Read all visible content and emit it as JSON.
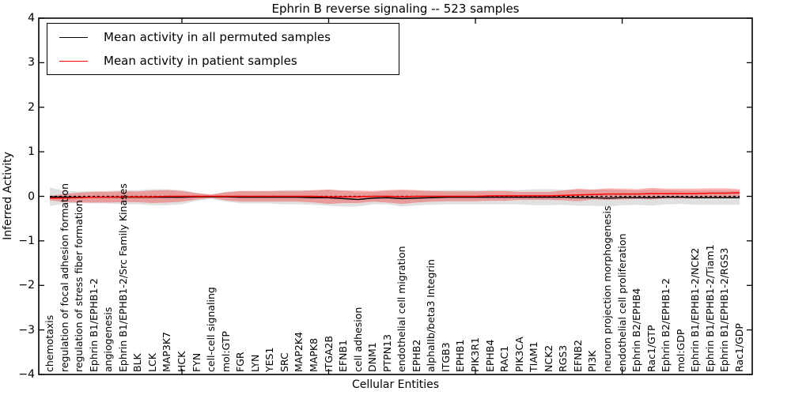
{
  "title": "Ephrin B reverse signaling -- 523 samples",
  "axes": {
    "xlabel": "Cellular Entities",
    "ylabel": "Inferred Activity"
  },
  "legend": {
    "items": [
      {
        "label": "Mean activity in all permuted samples",
        "color": "#000000"
      },
      {
        "label": "Mean activity in patient samples",
        "color": "#ff0000"
      }
    ]
  },
  "chart_data": {
    "type": "line",
    "title": "Ephrin B reverse signaling -- 523 samples",
    "xlabel": "Cellular Entities",
    "ylabel": "Inferred Activity",
    "ylim": [
      -4,
      4
    ],
    "y_ticks": [
      4,
      3,
      2,
      1,
      0,
      -1,
      -2,
      -3,
      -4
    ],
    "grid": false,
    "legend_position": "upper left",
    "zero_line_dashed": true,
    "x_major_tick_indices": [
      9,
      19,
      29,
      39
    ],
    "categories": [
      "chemotaxis",
      "regulation of focal adhesion formation",
      "regulation of stress fiber formation",
      "Ephrin B1/EPHB1-2",
      "angiogenesis",
      "Ephrin B1/EPHB1-2/Src Family Kinases",
      "BLK",
      "LCK",
      "MAP3K7",
      "HCK",
      "FYN",
      "cell-cell signaling",
      "mol:GTP",
      "FGR",
      "LYN",
      "YES1",
      "SRC",
      "MAP2K4",
      "MAPK8",
      "ITGA2B",
      "EFNB1",
      "cell adhesion",
      "DNM1",
      "PTPN13",
      "endothelial cell migration",
      "EPHB2",
      "alphaIIb/beta3 Integrin",
      "ITGB3",
      "EPHB1",
      "PIK3R1",
      "EPHB4",
      "RAC1",
      "PIK3CA",
      "TIAM1",
      "NCK2",
      "RGS3",
      "EFNB2",
      "PI3K",
      "neuron projection morphogenesis",
      "endothelial cell proliferation",
      "Ephrin B2/EPHB4",
      "Rac1/GTP",
      "Ephrin B2/EPHB1-2",
      "mol:GDP",
      "Ephrin B1/EPHB1-2/NCK2",
      "Ephrin B1/EPHB1-2/Tiam1",
      "Ephrin B1/EPHB1-2/RGS3",
      "Rac1/GDP"
    ],
    "series": [
      {
        "name": "Mean activity in all permuted samples",
        "color": "#000000",
        "band_color": "rgba(0,0,0,0.12)",
        "mean": [
          -0.01,
          -0.02,
          -0.02,
          -0.02,
          -0.02,
          -0.02,
          -0.02,
          -0.02,
          -0.02,
          -0.02,
          -0.01,
          -0.01,
          -0.01,
          -0.02,
          -0.02,
          -0.02,
          -0.02,
          -0.02,
          -0.03,
          -0.03,
          -0.05,
          -0.07,
          -0.04,
          -0.03,
          -0.05,
          -0.04,
          -0.03,
          -0.02,
          -0.02,
          -0.02,
          -0.02,
          -0.02,
          -0.02,
          -0.02,
          -0.02,
          -0.02,
          -0.03,
          -0.03,
          -0.04,
          -0.03,
          -0.03,
          -0.03,
          -0.02,
          -0.02,
          -0.03,
          -0.03,
          -0.03,
          -0.03
        ],
        "std": [
          0.21,
          0.14,
          0.13,
          0.14,
          0.14,
          0.16,
          0.16,
          0.18,
          0.18,
          0.16,
          0.09,
          0.05,
          0.11,
          0.14,
          0.14,
          0.14,
          0.16,
          0.16,
          0.16,
          0.18,
          0.18,
          0.16,
          0.14,
          0.15,
          0.18,
          0.16,
          0.16,
          0.16,
          0.16,
          0.16,
          0.16,
          0.16,
          0.16,
          0.18,
          0.18,
          0.17,
          0.18,
          0.18,
          0.19,
          0.17,
          0.16,
          0.18,
          0.16,
          0.15,
          0.16,
          0.16,
          0.16,
          0.16
        ]
      },
      {
        "name": "Mean activity in patient samples",
        "color": "#ff0000",
        "band_color": "rgba(255,0,0,0.30)",
        "mean": [
          -0.04,
          -0.04,
          -0.03,
          -0.02,
          -0.02,
          -0.01,
          -0.01,
          -0.01,
          0,
          0,
          0,
          0,
          0,
          0,
          0,
          0,
          0,
          0,
          0,
          -0.01,
          -0.01,
          -0.01,
          0,
          0,
          -0.01,
          0,
          0,
          0,
          0,
          0,
          0.01,
          0.01,
          0.01,
          0.01,
          0.01,
          0.02,
          0.03,
          0.04,
          0.05,
          0.05,
          0.05,
          0.06,
          0.06,
          0.06,
          0.06,
          0.07,
          0.07,
          0.08
        ],
        "std": [
          0.05,
          0.09,
          0.11,
          0.12,
          0.12,
          0.12,
          0.12,
          0.14,
          0.14,
          0.12,
          0.07,
          0.04,
          0.09,
          0.12,
          0.12,
          0.12,
          0.12,
          0.12,
          0.14,
          0.16,
          0.14,
          0.14,
          0.12,
          0.14,
          0.16,
          0.14,
          0.12,
          0.11,
          0.11,
          0.11,
          0.11,
          0.11,
          0.09,
          0.09,
          0.09,
          0.11,
          0.14,
          0.11,
          0.13,
          0.12,
          0.11,
          0.13,
          0.11,
          0.11,
          0.11,
          0.11,
          0.11,
          0.08
        ]
      }
    ]
  }
}
